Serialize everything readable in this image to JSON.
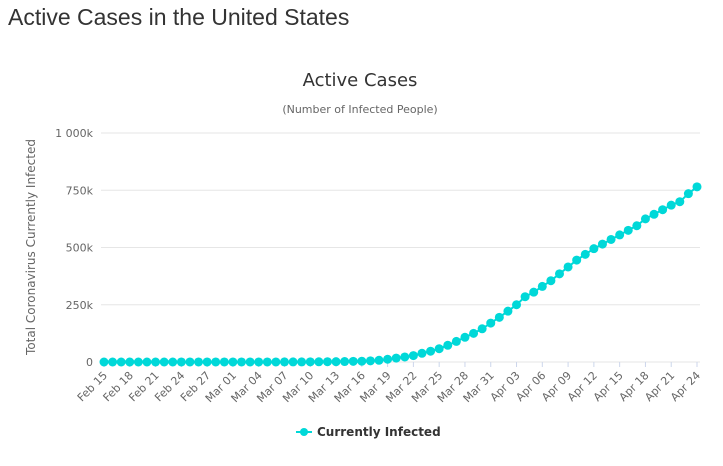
{
  "page": {
    "title": "Active Cases in the United States"
  },
  "chart_data": {
    "type": "line",
    "title": "Active Cases",
    "subtitle": "(Number of Infected People)",
    "ylabel": "Total Coronavirus Currently Infected",
    "xlabel": "",
    "ylim": [
      0,
      1000000
    ],
    "yticks": [
      0,
      250000,
      500000,
      750000,
      1000000
    ],
    "ytick_labels": [
      "0",
      "250k",
      "500k",
      "750k",
      "1 000k"
    ],
    "grid": true,
    "legend_position": "bottom",
    "color": "#00d8d8",
    "x": [
      "Feb 15",
      "Feb 16",
      "Feb 17",
      "Feb 18",
      "Feb 19",
      "Feb 20",
      "Feb 21",
      "Feb 22",
      "Feb 23",
      "Feb 24",
      "Feb 25",
      "Feb 26",
      "Feb 27",
      "Feb 28",
      "Feb 29",
      "Mar 01",
      "Mar 02",
      "Mar 03",
      "Mar 04",
      "Mar 05",
      "Mar 06",
      "Mar 07",
      "Mar 08",
      "Mar 09",
      "Mar 10",
      "Mar 11",
      "Mar 12",
      "Mar 13",
      "Mar 14",
      "Mar 15",
      "Mar 16",
      "Mar 17",
      "Mar 18",
      "Mar 19",
      "Mar 20",
      "Mar 21",
      "Mar 22",
      "Mar 23",
      "Mar 24",
      "Mar 25",
      "Mar 26",
      "Mar 27",
      "Mar 28",
      "Mar 29",
      "Mar 30",
      "Mar 31",
      "Apr 01",
      "Apr 02",
      "Apr 03",
      "Apr 04",
      "Apr 05",
      "Apr 06",
      "Apr 07",
      "Apr 08",
      "Apr 09",
      "Apr 10",
      "Apr 11",
      "Apr 12",
      "Apr 13",
      "Apr 14",
      "Apr 15",
      "Apr 16",
      "Apr 17",
      "Apr 18",
      "Apr 19",
      "Apr 20",
      "Apr 21",
      "Apr 22",
      "Apr 23",
      "Apr 24"
    ],
    "xtick_labels": [
      "Feb 15",
      "Feb 18",
      "Feb 21",
      "Feb 24",
      "Feb 27",
      "Mar 01",
      "Mar 04",
      "Mar 07",
      "Mar 10",
      "Mar 13",
      "Mar 16",
      "Mar 19",
      "Mar 22",
      "Mar 25",
      "Mar 28",
      "Mar 31",
      "Apr 03",
      "Apr 06",
      "Apr 09",
      "Apr 12",
      "Apr 15",
      "Apr 18",
      "Apr 21",
      "Apr 24"
    ],
    "series": [
      {
        "name": "Currently Infected",
        "values": [
          12,
          12,
          12,
          12,
          12,
          12,
          12,
          22,
          22,
          45,
          45,
          45,
          48,
          50,
          55,
          65,
          80,
          95,
          110,
          150,
          200,
          300,
          400,
          500,
          650,
          900,
          1200,
          1600,
          2100,
          2800,
          3500,
          5000,
          7500,
          12000,
          17000,
          22000,
          28000,
          38000,
          47000,
          58000,
          73000,
          90000,
          108000,
          125000,
          145000,
          170000,
          195000,
          222000,
          250000,
          285000,
          305000,
          330000,
          355000,
          385000,
          415000,
          445000,
          470000,
          495000,
          515000,
          535000,
          555000,
          575000,
          595000,
          625000,
          645000,
          665000,
          685000,
          700000,
          735000,
          765000
        ]
      }
    ]
  }
}
